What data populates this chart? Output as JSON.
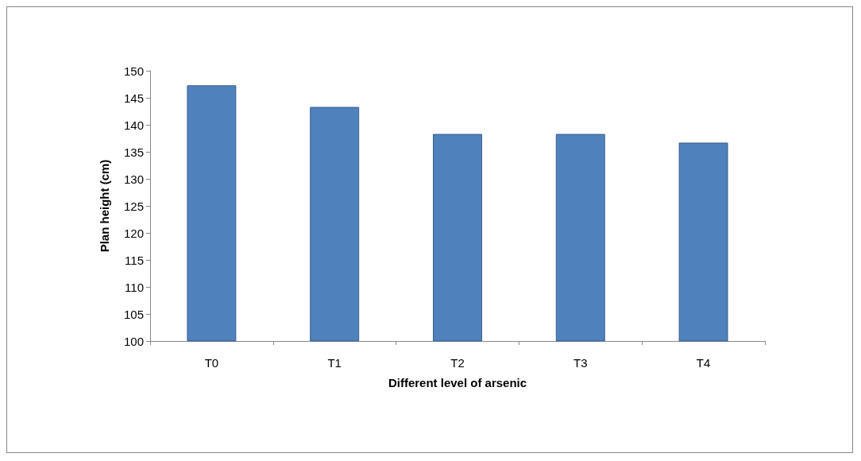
{
  "chart_data": {
    "type": "bar",
    "xlabel": "Different level of arsenic",
    "ylabel": "Plan height (cm)",
    "categories": [
      "T0",
      "T1",
      "T2",
      "T3",
      "T4"
    ],
    "values": [
      147.3,
      143.3,
      138.3,
      138.3,
      136.7
    ],
    "color": "#4f81bd",
    "ylim": [
      100,
      150
    ],
    "yticks": [
      100,
      105,
      110,
      115,
      120,
      125,
      130,
      135,
      140,
      145,
      150
    ],
    "grid": false
  }
}
